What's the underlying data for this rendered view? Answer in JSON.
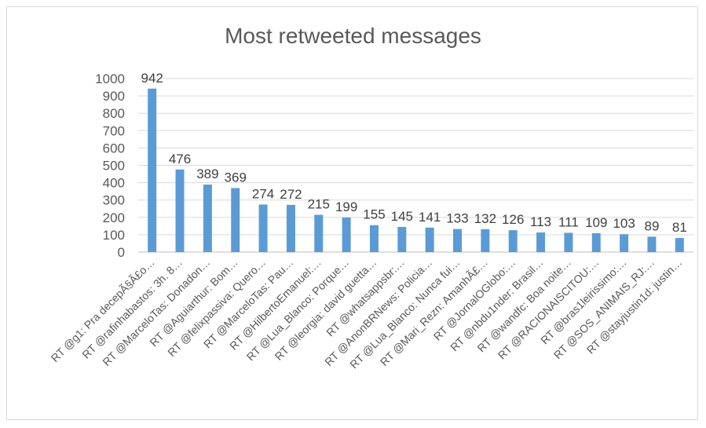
{
  "chart_data": {
    "type": "bar",
    "title": "Most retweeted messages",
    "xlabel": "",
    "ylabel": "",
    "ylim": [
      0,
      1000
    ],
    "y_ticks": [
      0,
      100,
      200,
      300,
      400,
      500,
      600,
      700,
      800,
      900,
      1000
    ],
    "grid": true,
    "legend": "none",
    "bar_color": "#5b9bd5",
    "categories": [
      "RT @g1: Pra decepÃ§Ã£o…",
      "RT @rafinhabastos: 3h. 8…",
      "RT @MarceloTas: Donadon…",
      "RT @Aguiarthur: Bom…",
      "RT @felixpassiva: Quero…",
      "RT @MarceloTas: Pau…",
      "RT @HilbertoEmanuel:…",
      "RT @Lua_Blanco: Porque…",
      "RT @leorgia: david guetta…",
      "RT @whatsappsbr:…",
      "RT @AnonBRNews: Policia…",
      "RT @Lua_Blanco: Nunca fui…",
      "RT @Mari_Rezn: AmanhÃ£…",
      "RT @JornalOGlobo:…",
      "RT @nbdu1nder: Brasil…",
      "RT @wandfc: Boa noite…",
      "RT @RACIONAISCITOU:…",
      "RT @bras1leirissimo:…",
      "RT @SOS_ANIMAIS_RJ:…",
      "RT @stayjustin1d: justin…"
    ],
    "values": [
      942,
      476,
      389,
      369,
      274,
      272,
      215,
      199,
      155,
      145,
      141,
      133,
      132,
      126,
      113,
      111,
      109,
      103,
      89,
      81
    ]
  }
}
